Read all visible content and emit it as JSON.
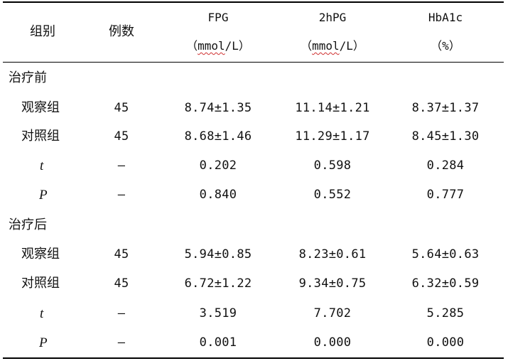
{
  "table": {
    "headers": {
      "group": "组别",
      "cases": "例数",
      "fpg": {
        "name": "FPG",
        "unit_open": "（",
        "unit_word": "mmol",
        "unit_rest": "/L）"
      },
      "hpg2": {
        "name": "2hPG",
        "unit_open": "（",
        "unit_word": "mmol",
        "unit_rest": "/L）"
      },
      "hba1c": {
        "name": "HbA1c",
        "unit": "（%）"
      }
    },
    "sections": [
      {
        "label": "治疗前",
        "rows": [
          {
            "group": "观察组",
            "n": "45",
            "fpg": "8.74±1.35",
            "hpg2": "11.14±1.21",
            "hba1c": "8.37±1.37"
          },
          {
            "group": "对照组",
            "n": "45",
            "fpg": "8.68±1.46",
            "hpg2": "11.29±1.17",
            "hba1c": "8.45±1.30"
          },
          {
            "group": "t",
            "n": "–",
            "fpg": "0.202",
            "hpg2": "0.598",
            "hba1c": "0.284"
          },
          {
            "group": "P",
            "n": "–",
            "fpg": "0.840",
            "hpg2": "0.552",
            "hba1c": "0.777"
          }
        ]
      },
      {
        "label": "治疗后",
        "rows": [
          {
            "group": "观察组",
            "n": "45",
            "fpg": "5.94±0.85",
            "hpg2": "8.23±0.61",
            "hba1c": "5.64±0.63"
          },
          {
            "group": "对照组",
            "n": "45",
            "fpg": "6.72±1.22",
            "hpg2": "9.34±0.75",
            "hba1c": "6.32±0.59"
          },
          {
            "group": "t",
            "n": "–",
            "fpg": "3.519",
            "hpg2": "7.702",
            "hba1c": "5.285"
          },
          {
            "group": "P",
            "n": "–",
            "fpg": "0.001",
            "hpg2": "0.000",
            "hba1c": "0.000"
          }
        ]
      }
    ]
  }
}
